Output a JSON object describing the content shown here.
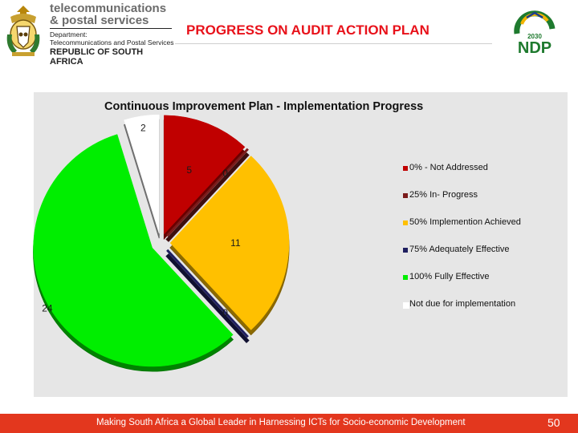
{
  "header": {
    "dept_name_line1": "telecommunications",
    "dept_name_line2": "& postal services",
    "dept_label": "Department:",
    "dept_full": "Telecommunications and Postal Services",
    "country": "REPUBLIC OF SOUTH AFRICA",
    "ndp_year": "2030",
    "ndp_text": "NDP"
  },
  "slide": {
    "title": "PROGRESS ON AUDIT ACTION PLAN"
  },
  "footer": {
    "text": "Making South Africa a Global Leader in Harnessing ICTs for Socio-economic Development",
    "page_number": "50"
  },
  "colors": {
    "footer": "#e3371e",
    "title": "#e8111a",
    "not_addressed": "#c00000",
    "in_progress": "#7b1b1b",
    "implementation_achieved": "#ffc000",
    "adequately_effective": "#1f1f5f",
    "fully_effective": "#00ee00",
    "not_due": "#ffffff"
  },
  "chart_data": {
    "type": "pie",
    "title": "Continuous Improvement Plan - Implementation Progress",
    "legend_position": "right",
    "slices": [
      {
        "label": "0% - Not Addressed",
        "value": 5,
        "color": "#c00000"
      },
      {
        "label": "25% In- Progress",
        "value": 0,
        "color": "#7b1b1b"
      },
      {
        "label": "50% Implemention Achieved",
        "value": 11,
        "color": "#ffc000"
      },
      {
        "label": "75% Adequately Effective",
        "value": 0,
        "color": "#1f1f5f"
      },
      {
        "label": "100% Fully Effective",
        "value": 24,
        "color": "#00ee00"
      },
      {
        "label": "Not due for implementation",
        "value": 2,
        "color": "#ffffff"
      }
    ]
  }
}
